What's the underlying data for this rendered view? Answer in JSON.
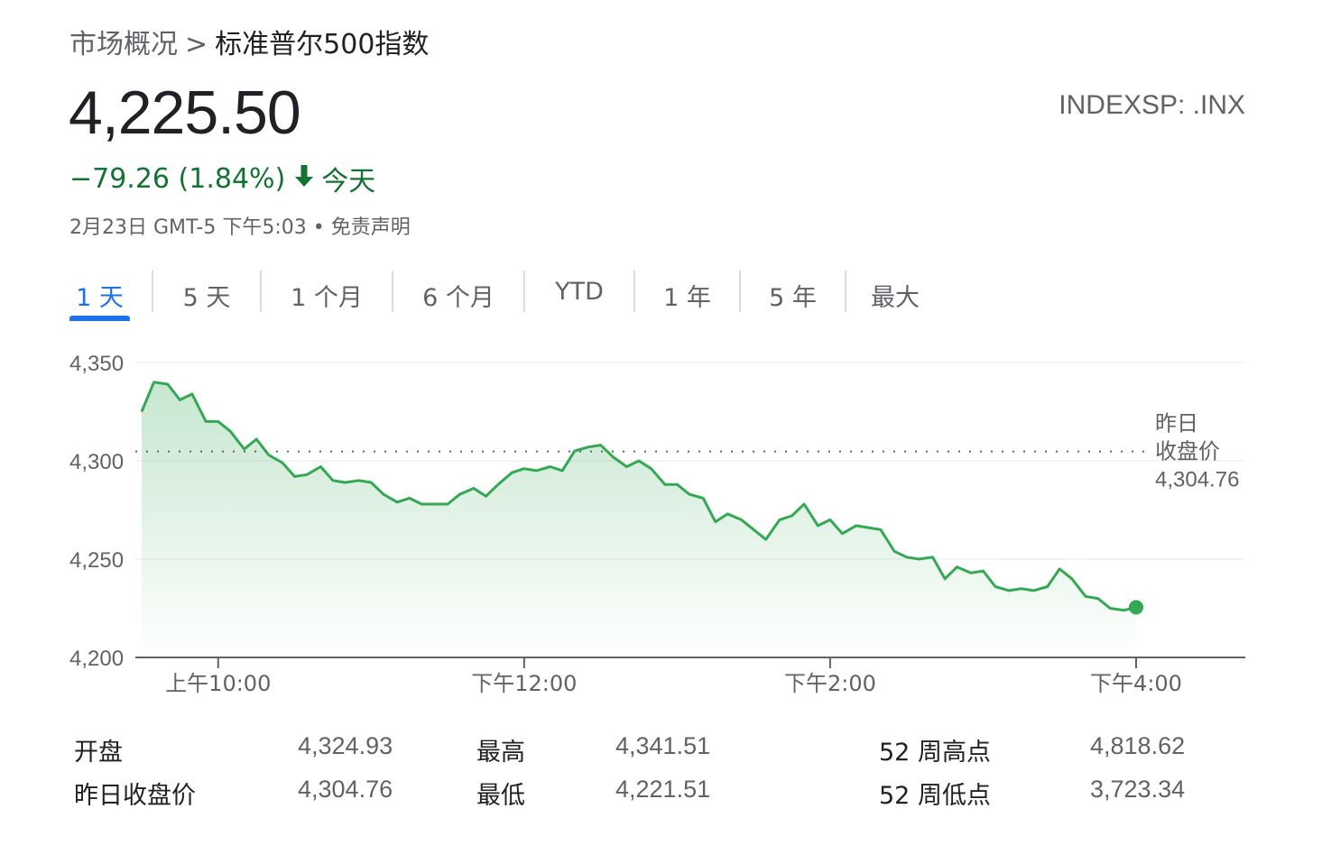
{
  "breadcrumb": {
    "parent": "市场概况",
    "separator": ">",
    "current": "标准普尔500指数"
  },
  "quote": {
    "price": "4,225.50",
    "ticker": "INDEXSP: .INX",
    "change": "−79.26 (1.84%)",
    "change_period": "今天",
    "timestamp": "2月23日 GMT-5 下午5:03",
    "dot": "•",
    "disclaimer": "免责声明",
    "color_down": "#137333"
  },
  "tabs": [
    "1 天",
    "5 天",
    "1 个月",
    "6 个月",
    "YTD",
    "1 年",
    "5 年",
    "最大"
  ],
  "active_tab": 0,
  "chart_data": {
    "type": "area",
    "ylim": [
      4200,
      4350
    ],
    "yticks": [
      "4,350",
      "4,300",
      "4,250",
      "4,200"
    ],
    "xticks": [
      "上午10:00",
      "下午12:00",
      "下午2:00",
      "下午4:00"
    ],
    "xtick_hours": [
      10,
      12,
      14,
      16
    ],
    "xlim_hours": [
      9.5,
      16.0
    ],
    "previous_close": {
      "value": 4304.76,
      "label_line1": "昨日",
      "label_line2": "收盘价",
      "label_value": "4,304.76"
    },
    "line_color": "#34a853",
    "series": [
      {
        "x": [
          9.5,
          9.58,
          9.67,
          9.75,
          9.83,
          9.92,
          10.0,
          10.08,
          10.17,
          10.25,
          10.33,
          10.42,
          10.5,
          10.58,
          10.67,
          10.75,
          10.83,
          10.92,
          11.0,
          11.08,
          11.17,
          11.25,
          11.33,
          11.42,
          11.5,
          11.58,
          11.67,
          11.75,
          11.83,
          11.92,
          12.0,
          12.08,
          12.17,
          12.25,
          12.33,
          12.42,
          12.5,
          12.58,
          12.67,
          12.75,
          12.83,
          12.92,
          13.0,
          13.08,
          13.17,
          13.25,
          13.33,
          13.42,
          13.5,
          13.58,
          13.67,
          13.75,
          13.83,
          13.92,
          14.0,
          14.08,
          14.17,
          14.25,
          14.33,
          14.42,
          14.5,
          14.58,
          14.67,
          14.75,
          14.83,
          14.92,
          15.0,
          15.08,
          15.17,
          15.25,
          15.33,
          15.42,
          15.5,
          15.58,
          15.67,
          15.75,
          15.83,
          15.92,
          16.0
        ],
        "values": [
          4325,
          4340,
          4339,
          4331,
          4334,
          4320,
          4320,
          4315,
          4306,
          4311,
          4303,
          4299,
          4292,
          4293,
          4297,
          4290,
          4289,
          4290,
          4289,
          4283,
          4279,
          4281,
          4278,
          4278,
          4278,
          4283,
          4286,
          4282,
          4288,
          4294,
          4296,
          4295,
          4297,
          4295,
          4305,
          4307,
          4308,
          4302,
          4297,
          4300,
          4296,
          4288,
          4288,
          4283,
          4281,
          4269,
          4273,
          4270,
          4265,
          4260,
          4270,
          4272,
          4278,
          4267,
          4270,
          4263,
          4267,
          4266,
          4265,
          4254,
          4251,
          4250,
          4251,
          4240,
          4246,
          4243,
          4244,
          4236,
          4234,
          4235,
          4234,
          4236,
          4245,
          4240,
          4231,
          4230,
          4225,
          4224,
          4225.5
        ]
      }
    ]
  },
  "stats": [
    {
      "label": "开盘",
      "value": "4,324.93"
    },
    {
      "label": "昨日收盘价",
      "value": "4,304.76"
    },
    {
      "label": "最高",
      "value": "4,341.51"
    },
    {
      "label": "最低",
      "value": "4,221.51"
    },
    {
      "label": "52 周高点",
      "value": "4,818.62"
    },
    {
      "label": "52 周低点",
      "value": "3,723.34"
    }
  ]
}
